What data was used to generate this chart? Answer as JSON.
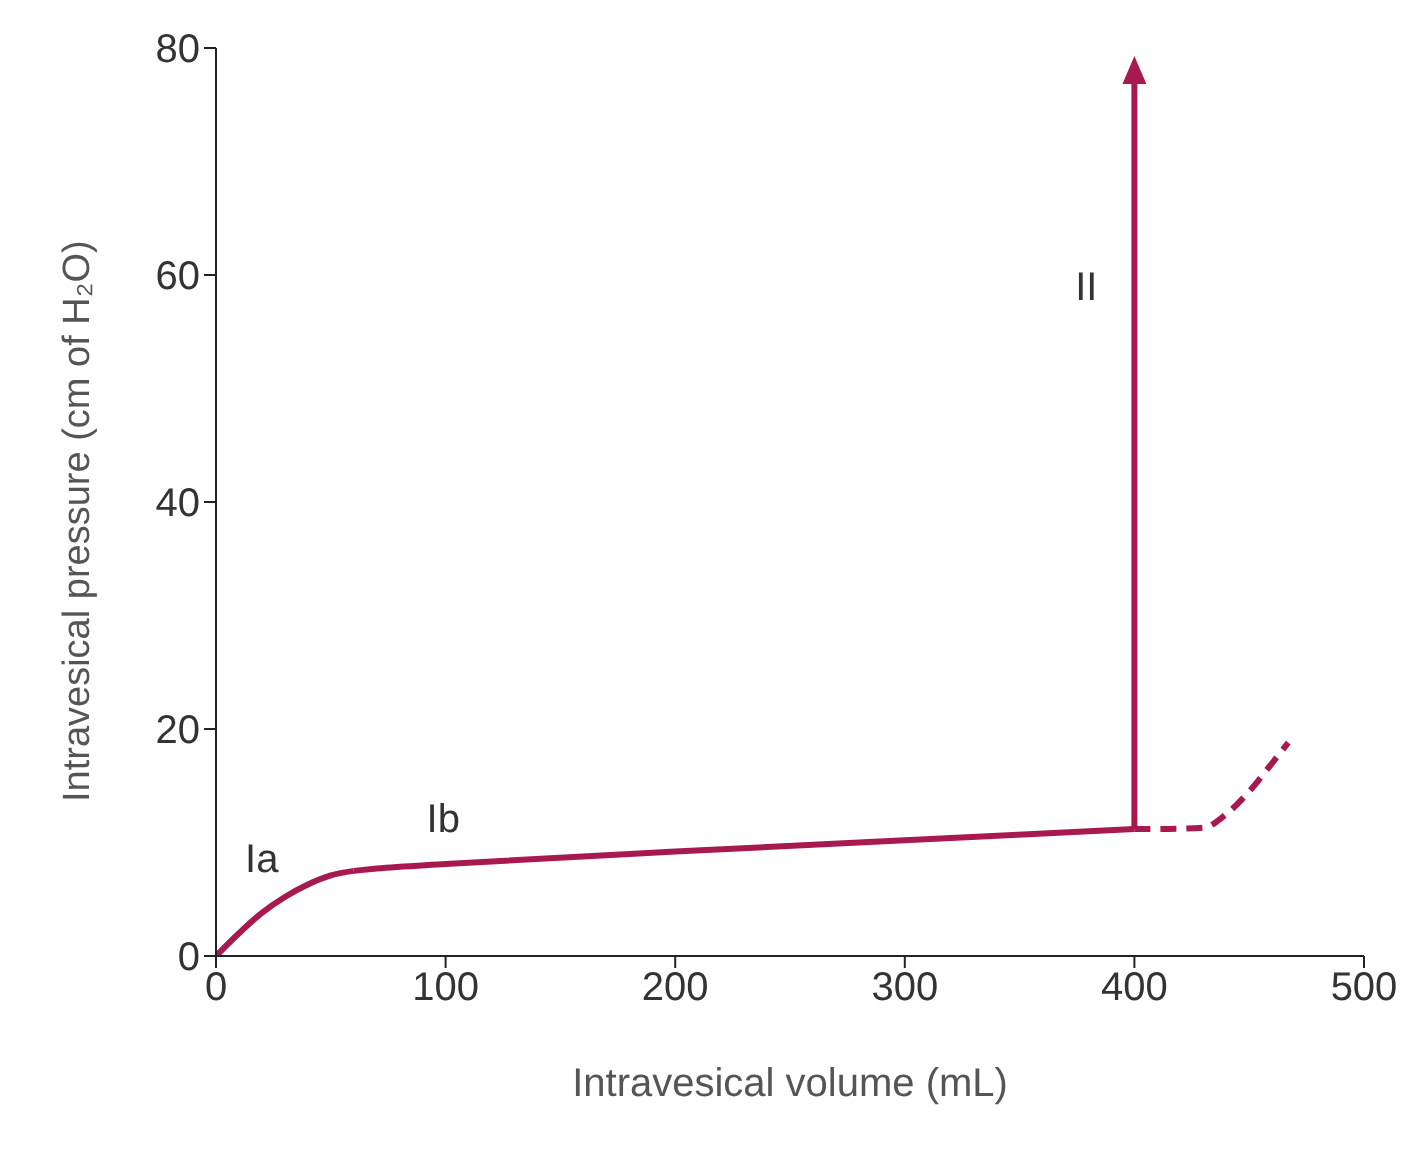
{
  "chart_data": {
    "type": "line",
    "xlabel": "Intravesical volume (mL)",
    "ylabel": "Intravesical pressure (cm of H₂O)",
    "xlim": [
      0,
      500
    ],
    "xticks": [
      0,
      100,
      200,
      300,
      400,
      500
    ],
    "ylim": [
      0,
      80
    ],
    "yticks": [
      0,
      20,
      40,
      60,
      80
    ],
    "grid": false,
    "legend": false,
    "marker": "none",
    "series": [
      {
        "name": "Ia",
        "color": "#a8194f",
        "line_style": "solid",
        "x": [
          0,
          10,
          20,
          30,
          40,
          50,
          60
        ],
        "values": [
          0,
          2,
          3.8,
          5.2,
          6.3,
          7.1,
          7.5
        ]
      },
      {
        "name": "Ib",
        "color": "#a8194f",
        "line_style": "solid",
        "x": [
          60,
          70,
          100,
          200,
          300,
          400
        ],
        "values": [
          7.5,
          7.7,
          8.1,
          9.2,
          10.2,
          11.2
        ]
      },
      {
        "color": "#a8194f",
        "line_style": "dashed",
        "x": [
          400,
          415,
          430,
          440,
          450,
          460,
          467
        ],
        "values": [
          11.2,
          11.2,
          11.3,
          12.5,
          14.5,
          17,
          18.8
        ]
      }
    ],
    "annotations": [
      "II"
    ]
  }
}
